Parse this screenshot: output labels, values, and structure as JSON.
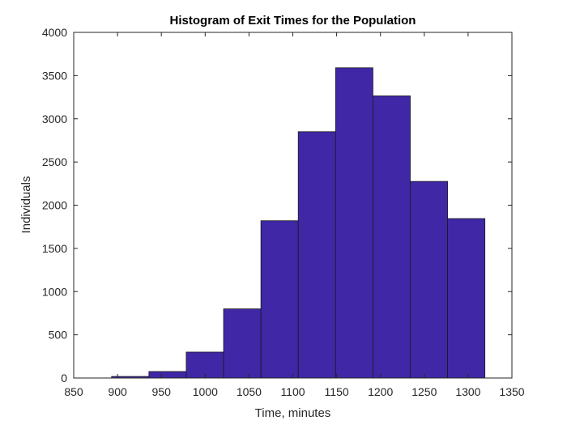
{
  "chart_data": {
    "type": "bar",
    "title": "Histogram of Exit Times for the Population",
    "xlabel": "Time, minutes",
    "ylabel": "Individuals",
    "xlim": [
      850,
      1350
    ],
    "ylim": [
      0,
      4000
    ],
    "xticks": [
      850,
      900,
      950,
      1000,
      1050,
      1100,
      1150,
      1200,
      1250,
      1300,
      1350
    ],
    "yticks": [
      0,
      500,
      1000,
      1500,
      2000,
      2500,
      3000,
      3500,
      4000
    ],
    "bins": [
      {
        "start": 893.2,
        "end": 935.8,
        "value": 18
      },
      {
        "start": 935.8,
        "end": 978.4,
        "value": 75
      },
      {
        "start": 978.4,
        "end": 1021.0,
        "value": 300
      },
      {
        "start": 1021.0,
        "end": 1063.6,
        "value": 800
      },
      {
        "start": 1063.6,
        "end": 1106.2,
        "value": 1820
      },
      {
        "start": 1106.2,
        "end": 1148.8,
        "value": 2850
      },
      {
        "start": 1148.8,
        "end": 1191.4,
        "value": 3590
      },
      {
        "start": 1191.4,
        "end": 1234.0,
        "value": 3265
      },
      {
        "start": 1234.0,
        "end": 1276.6,
        "value": 2275
      },
      {
        "start": 1276.6,
        "end": 1319.2,
        "value": 1845
      }
    ],
    "grid": false,
    "bar_color": "#3F27A6",
    "bar_edge_color": "#1a1a1a"
  }
}
